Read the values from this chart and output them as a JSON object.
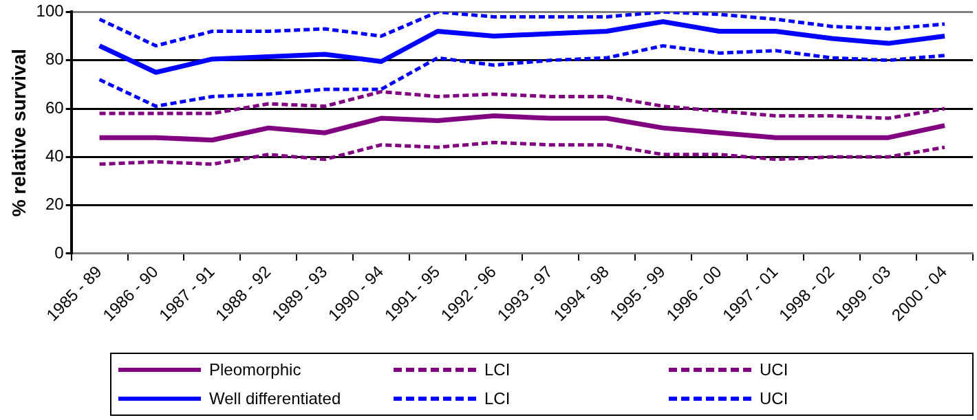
{
  "chart_data": {
    "type": "line",
    "ylabel": "% relative survival",
    "categories": [
      "1985 - 89",
      "1986 - 90",
      "1987 - 91",
      "1988 - 92",
      "1989 - 93",
      "1990 - 94",
      "1991 - 95",
      "1992 - 96",
      "1993 - 97",
      "1994 - 98",
      "1995 - 99",
      "1996 - 00",
      "1997 - 01",
      "1998 - 02",
      "1999 - 03",
      "2000 - 04"
    ],
    "series": [
      {
        "name": "Pleomorphic",
        "color": "#800080",
        "line_style": "solid",
        "values": [
          48,
          48,
          47,
          52,
          50,
          56,
          55,
          57,
          56,
          56,
          52,
          50,
          48,
          48,
          48,
          53
        ]
      },
      {
        "name": "LCI",
        "color": "#800080",
        "line_style": "dashed",
        "values": [
          37,
          38,
          37,
          41,
          39,
          45,
          44,
          46,
          45,
          45,
          41,
          41,
          39,
          40,
          40,
          44
        ]
      },
      {
        "name": "UCI",
        "color": "#800080",
        "line_style": "dashed",
        "values": [
          58,
          58,
          58,
          62,
          61,
          67,
          65,
          66,
          65,
          65,
          61,
          59,
          57,
          57,
          56,
          60
        ]
      },
      {
        "name": "Well differentiated",
        "color": "#0000ff",
        "line_style": "solid",
        "values": [
          86,
          75,
          80.5,
          81.5,
          82.5,
          79.5,
          92,
          90,
          91,
          92,
          96,
          92,
          92,
          89,
          87,
          90
        ]
      },
      {
        "name": "LCI",
        "color": "#0000ff",
        "line_style": "dashed",
        "values": [
          72,
          61,
          65,
          66,
          68,
          68,
          81,
          78,
          80,
          81,
          86,
          83,
          84,
          81,
          80,
          82
        ]
      },
      {
        "name": "UCI",
        "color": "#0000ff",
        "line_style": "dashed",
        "values": [
          97,
          86,
          92,
          92,
          93,
          90,
          100,
          98,
          98,
          98,
          100,
          99,
          97,
          94,
          93,
          95
        ]
      }
    ],
    "ylim": [
      0,
      100
    ],
    "yticks": [
      0,
      20,
      40,
      60,
      80,
      100
    ],
    "grid": "y",
    "legend": "bottom",
    "marker": "none"
  }
}
